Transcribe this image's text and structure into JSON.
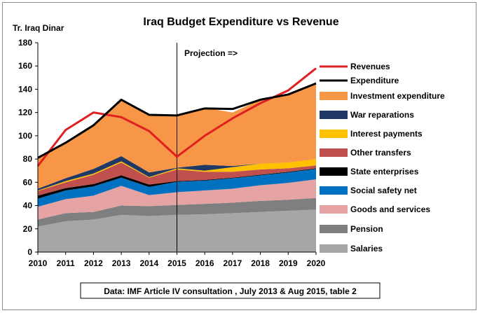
{
  "chart_data": {
    "type": "area",
    "title": "Iraq Budget Expenditure vs Revenue",
    "ylabel": "Tr. Iraq Dinar",
    "xlabel": "",
    "ylim": [
      0,
      180
    ],
    "yticks": [
      0,
      20,
      40,
      60,
      80,
      100,
      120,
      140,
      160,
      180
    ],
    "x": [
      "2010",
      "2011",
      "2012",
      "2013",
      "2014",
      "2015",
      "2016",
      "2017",
      "2018",
      "2019",
      "2020"
    ],
    "projection_start": "2015",
    "projection_label": "Projection =>",
    "source_note": "Data: IMF Article IV consultation , July 2013 & Aug 2015, table 2",
    "grid": false,
    "legend_position": "right",
    "stacked_series": [
      {
        "name": "Salaries",
        "color": "#a6a6a6",
        "values": [
          22,
          26.5,
          28,
          32,
          31,
          32,
          32.5,
          33.5,
          34.5,
          35.5,
          36.5
        ]
      },
      {
        "name": "Pension",
        "color": "#7f7f7f",
        "values": [
          6,
          7,
          6.5,
          8,
          8.5,
          8.5,
          9,
          9,
          9.5,
          9.5,
          10
        ]
      },
      {
        "name": "Goods and services",
        "color": "#e6a3a3",
        "values": [
          11,
          12,
          14,
          17,
          9.5,
          11,
          11.5,
          12,
          13.5,
          14.5,
          16
        ]
      },
      {
        "name": "Social safety net",
        "color": "#0070c0",
        "values": [
          7,
          7.5,
          8,
          7,
          7,
          9,
          8.5,
          9,
          8.5,
          9,
          9
        ]
      },
      {
        "name": "State enterprises",
        "color": "#000000",
        "values": [
          2.5,
          2,
          2,
          2,
          2,
          0.5,
          0.5,
          0.5,
          0.5,
          0.5,
          0.5
        ]
      },
      {
        "name": "Other transfers",
        "color": "#c0504d",
        "values": [
          4,
          5,
          8,
          11,
          6,
          10,
          7,
          5,
          4.5,
          3,
          2.5
        ]
      },
      {
        "name": "Interest payments",
        "color": "#ffc000",
        "values": [
          0.5,
          1,
          1,
          1,
          0.5,
          1,
          1,
          4,
          5,
          5,
          5.5
        ]
      },
      {
        "name": "War reparations",
        "color": "#1f3864",
        "values": [
          1.5,
          2.5,
          4,
          4.5,
          4,
          0.5,
          5,
          1,
          0,
          0,
          0
        ]
      },
      {
        "name": "Investment expenditure",
        "color": "#f79646",
        "values": [
          26,
          31,
          37,
          48.5,
          49.5,
          45,
          49,
          46,
          55,
          58.5,
          66
        ]
      }
    ],
    "line_series": [
      {
        "name": "Revenues",
        "color": "#e02020",
        "values": [
          74,
          105,
          120,
          116,
          104,
          82,
          100,
          115,
          128,
          139,
          158
        ]
      },
      {
        "name": "Expenditure",
        "color": "#000000",
        "values": [
          81,
          94,
          109,
          131,
          118,
          117.5,
          123.5,
          123,
          131,
          135.5,
          145
        ]
      }
    ],
    "legend_order": [
      "Revenues",
      "Expenditure",
      "Investment expenditure",
      "War reparations",
      "Interest payments",
      "Other transfers",
      "State enterprises",
      "Social safety net",
      "Goods and services",
      "Pension",
      "Salaries"
    ]
  }
}
